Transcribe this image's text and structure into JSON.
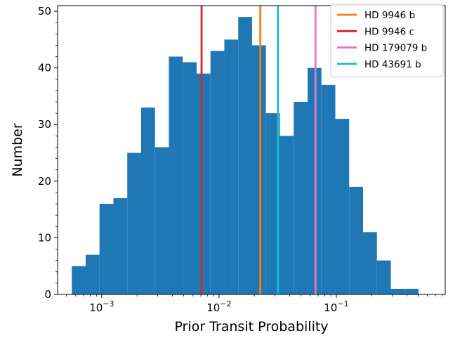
{
  "chart_data": {
    "type": "bar",
    "xscale": "log",
    "xlabel": "Prior Transit Probability",
    "ylabel": "Number",
    "xlim": [
      0.00042,
      0.85
    ],
    "ylim": [
      0,
      51
    ],
    "grid": false,
    "legend_position": "top-right",
    "bin_edges": [
      0.000555,
      0.000729,
      0.000957,
      0.001257,
      0.00165,
      0.002167,
      0.002845,
      0.003735,
      0.004905,
      0.006441,
      0.008457,
      0.011106,
      0.014583,
      0.019149,
      0.025145,
      0.033018,
      0.043356,
      0.056931,
      0.074757,
      0.098164,
      0.128901,
      0.169261,
      0.222258,
      0.291849,
      0.38323,
      0.503221
    ],
    "counts": [
      5,
      7,
      16,
      17,
      25,
      33,
      26,
      42,
      41,
      39,
      43,
      45,
      49,
      44,
      32,
      28,
      34,
      40,
      37,
      31,
      19,
      11,
      6,
      1,
      1
    ],
    "xticks": [
      {
        "value": 0.001,
        "base": "10",
        "exp": "−3"
      },
      {
        "value": 0.01,
        "base": "10",
        "exp": "−2"
      },
      {
        "value": 0.1,
        "base": "10",
        "exp": "−1"
      }
    ],
    "yticks": [
      {
        "value": 0,
        "label": "0"
      },
      {
        "value": 10,
        "label": "10"
      },
      {
        "value": 20,
        "label": "20"
      },
      {
        "value": 30,
        "label": "30"
      },
      {
        "value": 40,
        "label": "40"
      },
      {
        "value": 50,
        "label": "50"
      }
    ],
    "bar_color": "#1f77b4",
    "vlines": [
      {
        "name": "HD 9946 b",
        "x": 0.0225,
        "color": "#ff7f0e"
      },
      {
        "name": "HD 9946 c",
        "x": 0.0071,
        "color": "#d62728"
      },
      {
        "name": "HD 179079 b",
        "x": 0.0665,
        "color": "#e377c2"
      },
      {
        "name": "HD 43691 b",
        "x": 0.0318,
        "color": "#17becf"
      }
    ]
  }
}
